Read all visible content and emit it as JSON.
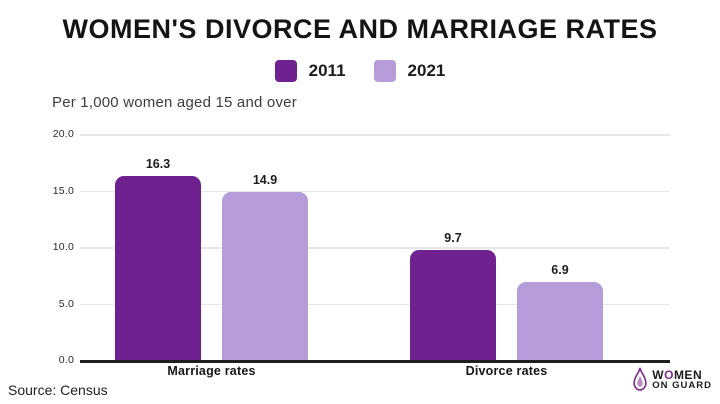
{
  "header": {
    "title": "WOMEN'S DIVORCE AND MARRIAGE RATES",
    "subtitle": "Per 1,000 women aged 15 and over"
  },
  "legend": {
    "items": [
      {
        "label": "2011",
        "color": "#6F2190"
      },
      {
        "label": "2021",
        "color": "#B69CD9"
      }
    ]
  },
  "chart_data": {
    "type": "bar",
    "title": "WOMEN'S DIVORCE AND MARRIAGE RATES",
    "subtitle": "Per 1,000 women aged 15 and over",
    "categories": [
      "Marriage rates",
      "Divorce rates"
    ],
    "series": [
      {
        "name": "2011",
        "color": "#6F2190",
        "values": [
          16.3,
          9.7
        ]
      },
      {
        "name": "2021",
        "color": "#B69CD9",
        "values": [
          14.9,
          6.9
        ]
      }
    ],
    "xlabel": "",
    "ylabel": "",
    "ylim": [
      0,
      20
    ],
    "yticks": [
      "0.0",
      "5.0",
      "10.0",
      "15.0",
      "20.0"
    ],
    "grid": true,
    "legend_position": "top"
  },
  "footer": {
    "source": "Source: Census",
    "brand": {
      "line1_pre": "W",
      "line1_o": "O",
      "line1_post": "MEN",
      "line2": "ON GUARD"
    }
  },
  "colors": {
    "accent_dark": "#6F2190",
    "accent_light": "#B69CD9",
    "gridline": "#e6e6e6",
    "axis_line": "#1f1f1f"
  }
}
